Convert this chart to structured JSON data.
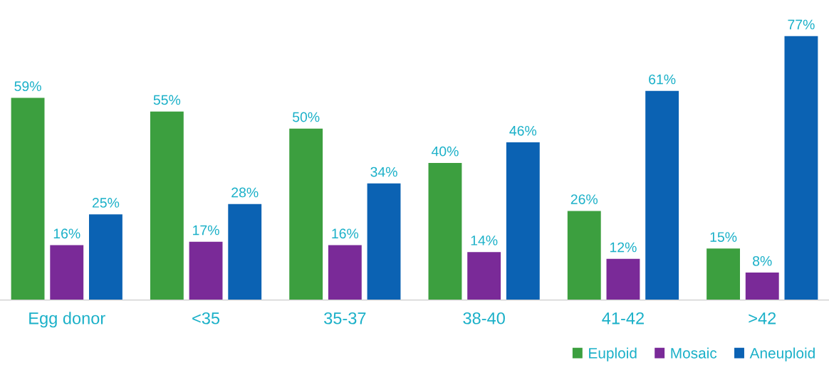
{
  "chart_data": {
    "type": "bar",
    "categories": [
      "Egg donor",
      "<35",
      "35-37",
      "38-40",
      "41-42",
      ">42"
    ],
    "series": [
      {
        "name": "Euploid",
        "color": "#3c9f3f",
        "values": [
          59,
          55,
          50,
          40,
          26,
          15
        ],
        "value_labels": [
          "59%",
          "55%",
          "50%",
          "40%",
          "26%",
          "15%"
        ]
      },
      {
        "name": "Mosaic",
        "color": "#7a2a98",
        "values": [
          16,
          17,
          16,
          14,
          12,
          8
        ],
        "value_labels": [
          "16%",
          "17%",
          "16%",
          "14%",
          "12%",
          "8%"
        ]
      },
      {
        "name": "Aneuploid",
        "color": "#0b62b3",
        "values": [
          25,
          28,
          34,
          46,
          61,
          77
        ],
        "value_labels": [
          "25%",
          "28%",
          "34%",
          "46%",
          "61%",
          "77%"
        ]
      }
    ],
    "legend": "bottom right",
    "grid": false
  }
}
